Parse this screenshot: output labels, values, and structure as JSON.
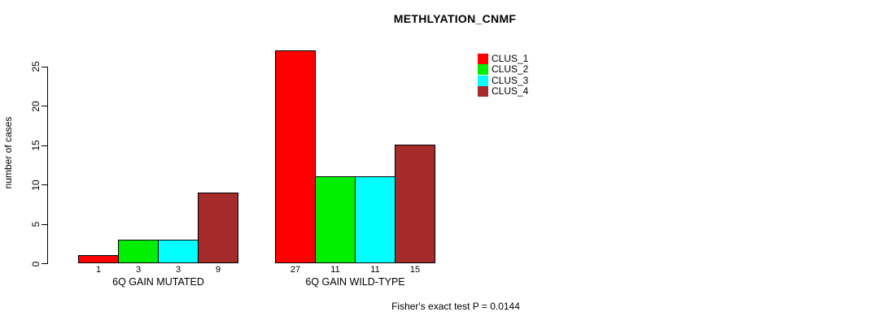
{
  "chart_data": {
    "type": "bar",
    "title": "METHLYATION_CNMF",
    "ylabel": "number of cases",
    "xlabel": "",
    "categories": [
      "6Q GAIN MUTATED",
      "6Q GAIN WILD-TYPE"
    ],
    "series": [
      {
        "name": "CLUS_1",
        "color": "#ff0000",
        "values": [
          1,
          27
        ]
      },
      {
        "name": "CLUS_2",
        "color": "#00ee00",
        "values": [
          3,
          11
        ]
      },
      {
        "name": "CLUS_3",
        "color": "#00ffff",
        "values": [
          3,
          11
        ]
      },
      {
        "name": "CLUS_4",
        "color": "#a52a2a",
        "values": [
          9,
          15
        ]
      }
    ],
    "yticks": [
      0,
      5,
      10,
      15,
      20,
      25
    ],
    "ylim": [
      0,
      27
    ],
    "grid": false,
    "bar_borders": true,
    "value_labels_under_bars": true,
    "legend_position": "top-right",
    "legend_entries": [
      "CLUS_1",
      "CLUS_2",
      "CLUS_3",
      "CLUS_4"
    ],
    "annotation": "Fisher's exact test P = 0.0144"
  }
}
